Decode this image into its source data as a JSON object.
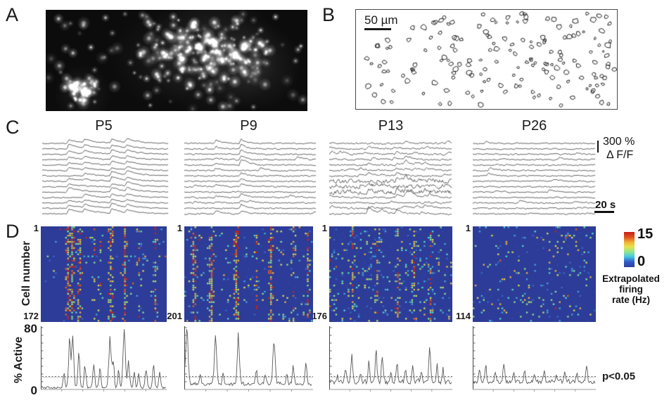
{
  "figure": {
    "panel_labels": {
      "a": "A",
      "b": "B",
      "c": "C",
      "d": "D"
    },
    "panel_b": {
      "scale_bar_label": "50 µm"
    },
    "panel_c": {
      "titles": [
        "P5",
        "P9",
        "P13",
        "P26"
      ],
      "scale_amplitude": "300 %",
      "scale_unit": "Δ F/F",
      "scale_time": "20 s"
    },
    "panel_d": {
      "y_axis_label": "Cell number",
      "first_cell_label": "1",
      "cell_counts": [
        "172",
        "201",
        "176",
        "114"
      ],
      "colorbar": {
        "max": "15",
        "min": "0",
        "label_line1": "Extrapolated",
        "label_line2": "firing",
        "label_line3": "rate (Hz)"
      },
      "active_plot": {
        "y_axis_label": "% Active",
        "y_max": "80",
        "y_min": "0",
        "significance": "p<0.05"
      }
    },
    "colors": {
      "heatmap_bg": "#2d3c98",
      "hot_red": "#cf2317",
      "trace_gray": "#3c3c3c"
    }
  },
  "chart_data": {
    "type": "multi-panel-figure",
    "heatmaps": {
      "value_label": "Extrapolated firing rate (Hz)",
      "value_range": [
        0,
        15
      ],
      "cell_counts": [
        172,
        201,
        176,
        114
      ],
      "row_start": 1
    },
    "active_plots": {
      "ylabel": "% Active",
      "ylim": [
        0,
        80
      ],
      "threshold_pct": 16,
      "threshold_label": "p<0.05"
    }
  },
  "render": {
    "ages": [
      {
        "traces": {
          "sync": [
            {
              "f": 0.21,
              "p": 0.9,
              "a": [
                3.5,
                7
              ]
            },
            {
              "f": 0.335,
              "p": 0.75,
              "a": [
                2.5,
                5.5
              ]
            },
            {
              "f": 0.55,
              "p": 0.9,
              "a": [
                3.5,
                7
              ]
            },
            {
              "f": 0.67,
              "p": 0.85,
              "a": [
                3.5,
                7.5
              ]
            }
          ],
          "tau": 16,
          "noise": 0.62,
          "rand": 0.5,
          "wild": []
        },
        "heatmap": {
          "base": 0.022,
          "activeRow": 0.3,
          "bands": [
            {
              "f": 0.205,
              "s": 0.85
            },
            {
              "f": 0.245,
              "s": 0.8
            },
            {
              "f": 0.3,
              "s": 0.45
            },
            {
              "f": 0.42,
              "s": 0.4
            },
            {
              "f": 0.47,
              "s": 0.3
            },
            {
              "f": 0.55,
              "s": 0.8
            },
            {
              "f": 0.665,
              "s": 0.85
            },
            {
              "f": 0.78,
              "s": 0.35
            },
            {
              "f": 0.9,
              "s": 0.45
            }
          ]
        },
        "active": {
          "base": 1.2,
          "jitter": 2.0,
          "peaks": [
            [
              0.18,
              20
            ],
            [
              0.225,
              54
            ],
            [
              0.25,
              58
            ],
            [
              0.3,
              40
            ],
            [
              0.35,
              28
            ],
            [
              0.42,
              30
            ],
            [
              0.47,
              22
            ],
            [
              0.55,
              63
            ],
            [
              0.575,
              35
            ],
            [
              0.62,
              22
            ],
            [
              0.665,
              72
            ],
            [
              0.7,
              33
            ],
            [
              0.745,
              18
            ],
            [
              0.78,
              16
            ],
            [
              0.84,
              26
            ],
            [
              0.9,
              27
            ],
            [
              0.95,
              18
            ]
          ]
        }
      },
      {
        "traces": {
          "sync": [
            {
              "f": 0.24,
              "p": 0.55,
              "a": [
                2.5,
                4.5
              ]
            },
            {
              "f": 0.43,
              "p": 0.9,
              "a": [
                3.5,
                9
              ]
            }
          ],
          "tau": 9,
          "noise": 0.8,
          "rand": 1.4,
          "wild": []
        },
        "heatmap": {
          "base": 0.06,
          "activeRow": 0,
          "bands": [
            {
              "f": 0.07,
              "s": 0.4
            },
            {
              "f": 0.21,
              "s": 0.85
            },
            {
              "f": 0.4,
              "s": 0.85
            },
            {
              "f": 0.56,
              "s": 0.35
            },
            {
              "f": 0.67,
              "s": 0.8
            },
            {
              "f": 0.84,
              "s": 0.4
            },
            {
              "f": 0.95,
              "s": 0.5
            }
          ]
        },
        "active": {
          "base": 5,
          "jitter": 3.2,
          "peaks": [
            [
              0.015,
              74
            ],
            [
              0.12,
              12
            ],
            [
              0.24,
              62
            ],
            [
              0.3,
              14
            ],
            [
              0.42,
              60
            ],
            [
              0.56,
              18
            ],
            [
              0.63,
              14
            ],
            [
              0.7,
              56
            ],
            [
              0.8,
              12
            ],
            [
              0.85,
              24
            ],
            [
              0.95,
              30
            ]
          ]
        }
      },
      {
        "traces": {
          "sync": [
            {
              "f": 0.32,
              "p": 0.5,
              "a": [
                2,
                5
              ]
            },
            {
              "f": 0.55,
              "p": 0.55,
              "a": [
                2.5,
                6
              ]
            },
            {
              "f": 0.62,
              "p": 0.4,
              "a": [
                2,
                6
              ]
            },
            {
              "f": 0.78,
              "p": 0.4,
              "a": [
                2,
                5
              ]
            }
          ],
          "tau": 8,
          "noise": 1.05,
          "rand": 3.2,
          "wild": [
            7,
            8,
            9
          ]
        },
        "heatmap": {
          "base": 0.105,
          "activeRow": 0,
          "bands": [
            {
              "f": 0.18,
              "s": 0.4
            },
            {
              "f": 0.38,
              "s": 0.4
            },
            {
              "f": 0.55,
              "s": 0.3
            },
            {
              "f": 0.68,
              "s": 0.35
            },
            {
              "f": 0.82,
              "s": 0.45
            }
          ]
        },
        "active": {
          "base": 6.5,
          "jitter": 4.2,
          "peaks": [
            [
              0.06,
              10
            ],
            [
              0.13,
              20
            ],
            [
              0.18,
              38
            ],
            [
              0.25,
              14
            ],
            [
              0.32,
              24
            ],
            [
              0.38,
              36
            ],
            [
              0.43,
              30
            ],
            [
              0.5,
              16
            ],
            [
              0.55,
              26
            ],
            [
              0.62,
              20
            ],
            [
              0.68,
              26
            ],
            [
              0.75,
              14
            ],
            [
              0.82,
              38
            ],
            [
              0.88,
              20
            ],
            [
              0.93,
              18
            ]
          ]
        }
      },
      {
        "traces": {
          "sync": [],
          "tau": 6,
          "noise": 0.8,
          "rand": 1.2,
          "wild": []
        },
        "heatmap": {
          "base": 0.085,
          "activeRow": 0,
          "bands": []
        },
        "active": {
          "base": 7.5,
          "jitter": 3.6,
          "peaks": [
            [
              0.05,
              18
            ],
            [
              0.1,
              24
            ],
            [
              0.18,
              14
            ],
            [
              0.25,
              26
            ],
            [
              0.33,
              12
            ],
            [
              0.42,
              16
            ],
            [
              0.5,
              12
            ],
            [
              0.58,
              14
            ],
            [
              0.68,
              10
            ],
            [
              0.75,
              16
            ],
            [
              0.85,
              12
            ],
            [
              0.93,
              20
            ]
          ]
        }
      }
    ]
  }
}
